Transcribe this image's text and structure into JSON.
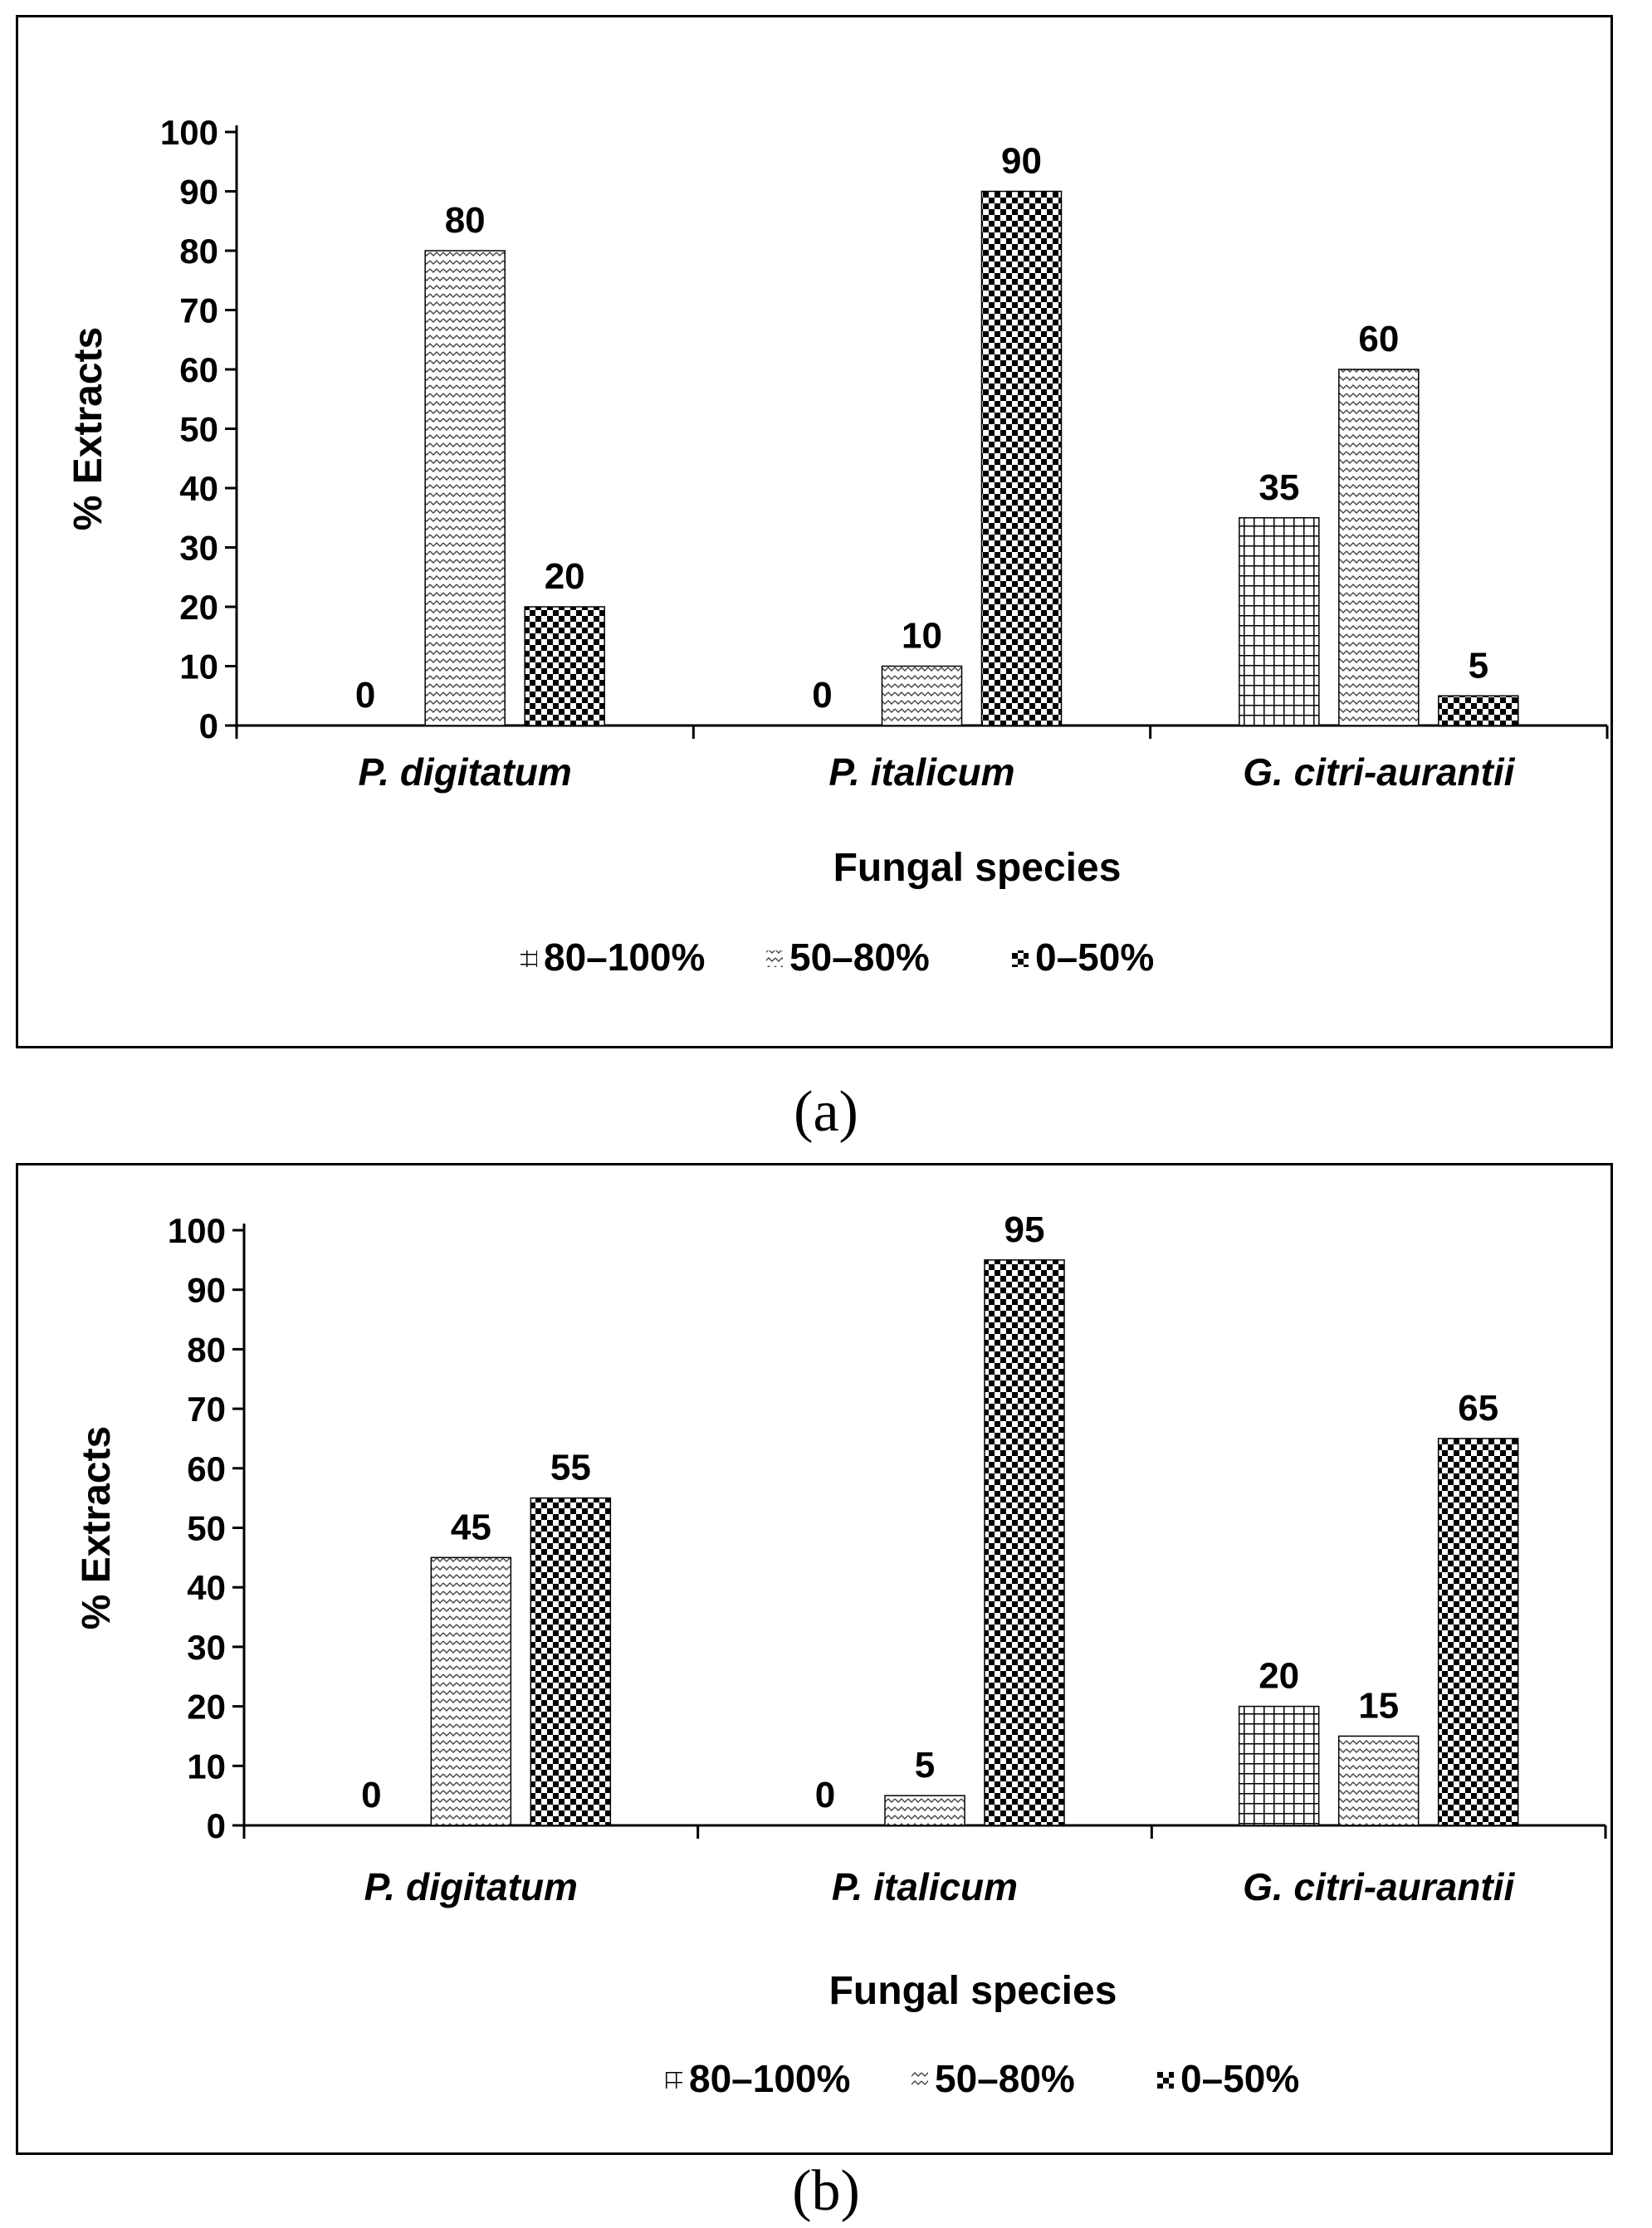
{
  "chart_data": [
    {
      "panel": "a",
      "type": "bar",
      "title": "",
      "caption": "(a)",
      "xlabel": "Fungal species",
      "ylabel": "% Extracts",
      "ylim": [
        0,
        100
      ],
      "yticks": [
        "0",
        "10",
        "20",
        "30",
        "40",
        "50",
        "60",
        "70",
        "80",
        "90",
        "100"
      ],
      "categories": [
        "P. digitatum",
        "P. italicum",
        "G. citri-aurantii"
      ],
      "series": [
        {
          "name": "80–100%",
          "pattern": "grid",
          "values": [
            0,
            0,
            35
          ]
        },
        {
          "name": "50–80%",
          "pattern": "zigzag",
          "values": [
            80,
            10,
            60
          ]
        },
        {
          "name": "0–50%",
          "pattern": "checker",
          "values": [
            20,
            90,
            5
          ]
        }
      ],
      "legend": "bottom",
      "grid": false
    },
    {
      "panel": "b",
      "type": "bar",
      "title": "",
      "caption": "(b)",
      "xlabel": "Fungal species",
      "ylabel": "% Extracts",
      "ylim": [
        0,
        100
      ],
      "yticks": [
        "0",
        "10",
        "20",
        "30",
        "40",
        "50",
        "60",
        "70",
        "80",
        "90",
        "100"
      ],
      "categories": [
        "P. digitatum",
        "P. italicum",
        "G. citri-aurantii"
      ],
      "series": [
        {
          "name": "80–100%",
          "pattern": "grid",
          "values": [
            0,
            0,
            20
          ]
        },
        {
          "name": "50–80%",
          "pattern": "zigzag",
          "values": [
            45,
            5,
            15
          ]
        },
        {
          "name": "0–50%",
          "pattern": "checker",
          "values": [
            55,
            95,
            65
          ]
        }
      ],
      "legend": "bottom",
      "grid": false
    }
  ],
  "colors": {
    "ink": "#000000",
    "background": "#ffffff"
  }
}
